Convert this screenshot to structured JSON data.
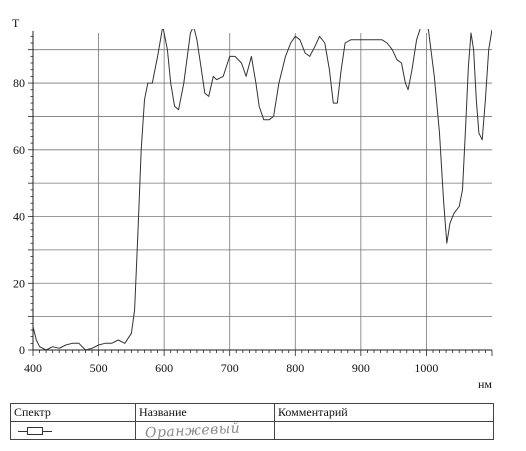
{
  "chart_data": {
    "type": "line",
    "title": "",
    "ylabel": "T",
    "xlabel": "нм",
    "xlim": [
      400,
      1100
    ],
    "ylim": [
      0,
      95
    ],
    "x_ticks": [
      400,
      500,
      600,
      700,
      800,
      900,
      1000
    ],
    "y_ticks": [
      0,
      20,
      40,
      60,
      80
    ],
    "grid": true,
    "series": [
      {
        "points": [
          [
            400,
            7
          ],
          [
            405,
            3
          ],
          [
            410,
            1
          ],
          [
            420,
            0
          ],
          [
            430,
            1
          ],
          [
            440,
            0.5
          ],
          [
            450,
            1.5
          ],
          [
            460,
            2
          ],
          [
            470,
            2
          ],
          [
            480,
            0
          ],
          [
            490,
            0.5
          ],
          [
            500,
            1.5
          ],
          [
            510,
            2
          ],
          [
            520,
            2
          ],
          [
            530,
            3
          ],
          [
            540,
            2
          ],
          [
            550,
            5
          ],
          [
            555,
            12
          ],
          [
            560,
            35
          ],
          [
            565,
            60
          ],
          [
            570,
            75
          ],
          [
            575,
            80
          ],
          [
            582,
            80
          ],
          [
            590,
            88
          ],
          [
            598,
            97
          ],
          [
            605,
            90
          ],
          [
            610,
            80
          ],
          [
            616,
            73
          ],
          [
            622,
            72
          ],
          [
            630,
            80
          ],
          [
            640,
            95
          ],
          [
            645,
            97
          ],
          [
            650,
            93
          ],
          [
            656,
            85
          ],
          [
            662,
            77
          ],
          [
            668,
            76
          ],
          [
            675,
            82
          ],
          [
            680,
            81
          ],
          [
            690,
            82
          ],
          [
            700,
            88
          ],
          [
            708,
            88
          ],
          [
            718,
            86
          ],
          [
            725,
            82
          ],
          [
            733,
            88
          ],
          [
            740,
            80
          ],
          [
            745,
            73
          ],
          [
            752,
            69
          ],
          [
            760,
            69
          ],
          [
            767,
            70
          ],
          [
            775,
            80
          ],
          [
            785,
            88
          ],
          [
            793,
            92
          ],
          [
            800,
            94
          ],
          [
            807,
            93
          ],
          [
            815,
            89
          ],
          [
            822,
            88
          ],
          [
            830,
            91
          ],
          [
            837,
            94
          ],
          [
            845,
            92
          ],
          [
            852,
            84
          ],
          [
            858,
            74
          ],
          [
            864,
            74
          ],
          [
            870,
            84
          ],
          [
            876,
            92
          ],
          [
            885,
            93
          ],
          [
            900,
            93
          ],
          [
            920,
            93
          ],
          [
            932,
            93
          ],
          [
            940,
            92
          ],
          [
            948,
            90
          ],
          [
            955,
            87
          ],
          [
            962,
            86
          ],
          [
            968,
            80
          ],
          [
            972,
            78
          ],
          [
            978,
            84
          ],
          [
            985,
            93
          ],
          [
            990,
            96
          ],
          [
            996,
            99
          ],
          [
            1003,
            96
          ],
          [
            1012,
            82
          ],
          [
            1020,
            65
          ],
          [
            1026,
            45
          ],
          [
            1031,
            32
          ],
          [
            1036,
            38
          ],
          [
            1042,
            41
          ],
          [
            1050,
            43
          ],
          [
            1055,
            48
          ],
          [
            1060,
            68
          ],
          [
            1064,
            85
          ],
          [
            1068,
            95
          ],
          [
            1072,
            90
          ],
          [
            1076,
            75
          ],
          [
            1080,
            65
          ],
          [
            1085,
            63
          ],
          [
            1090,
            75
          ],
          [
            1095,
            90
          ],
          [
            1100,
            96
          ]
        ]
      }
    ]
  },
  "legend_table": {
    "col_spectrum": "Спектр",
    "col_name": "Название",
    "col_comment": "Комментарий",
    "name_value": "Оранжевый",
    "comment_value": ""
  },
  "colors": {
    "line": "#333333",
    "grid": "#777777"
  }
}
